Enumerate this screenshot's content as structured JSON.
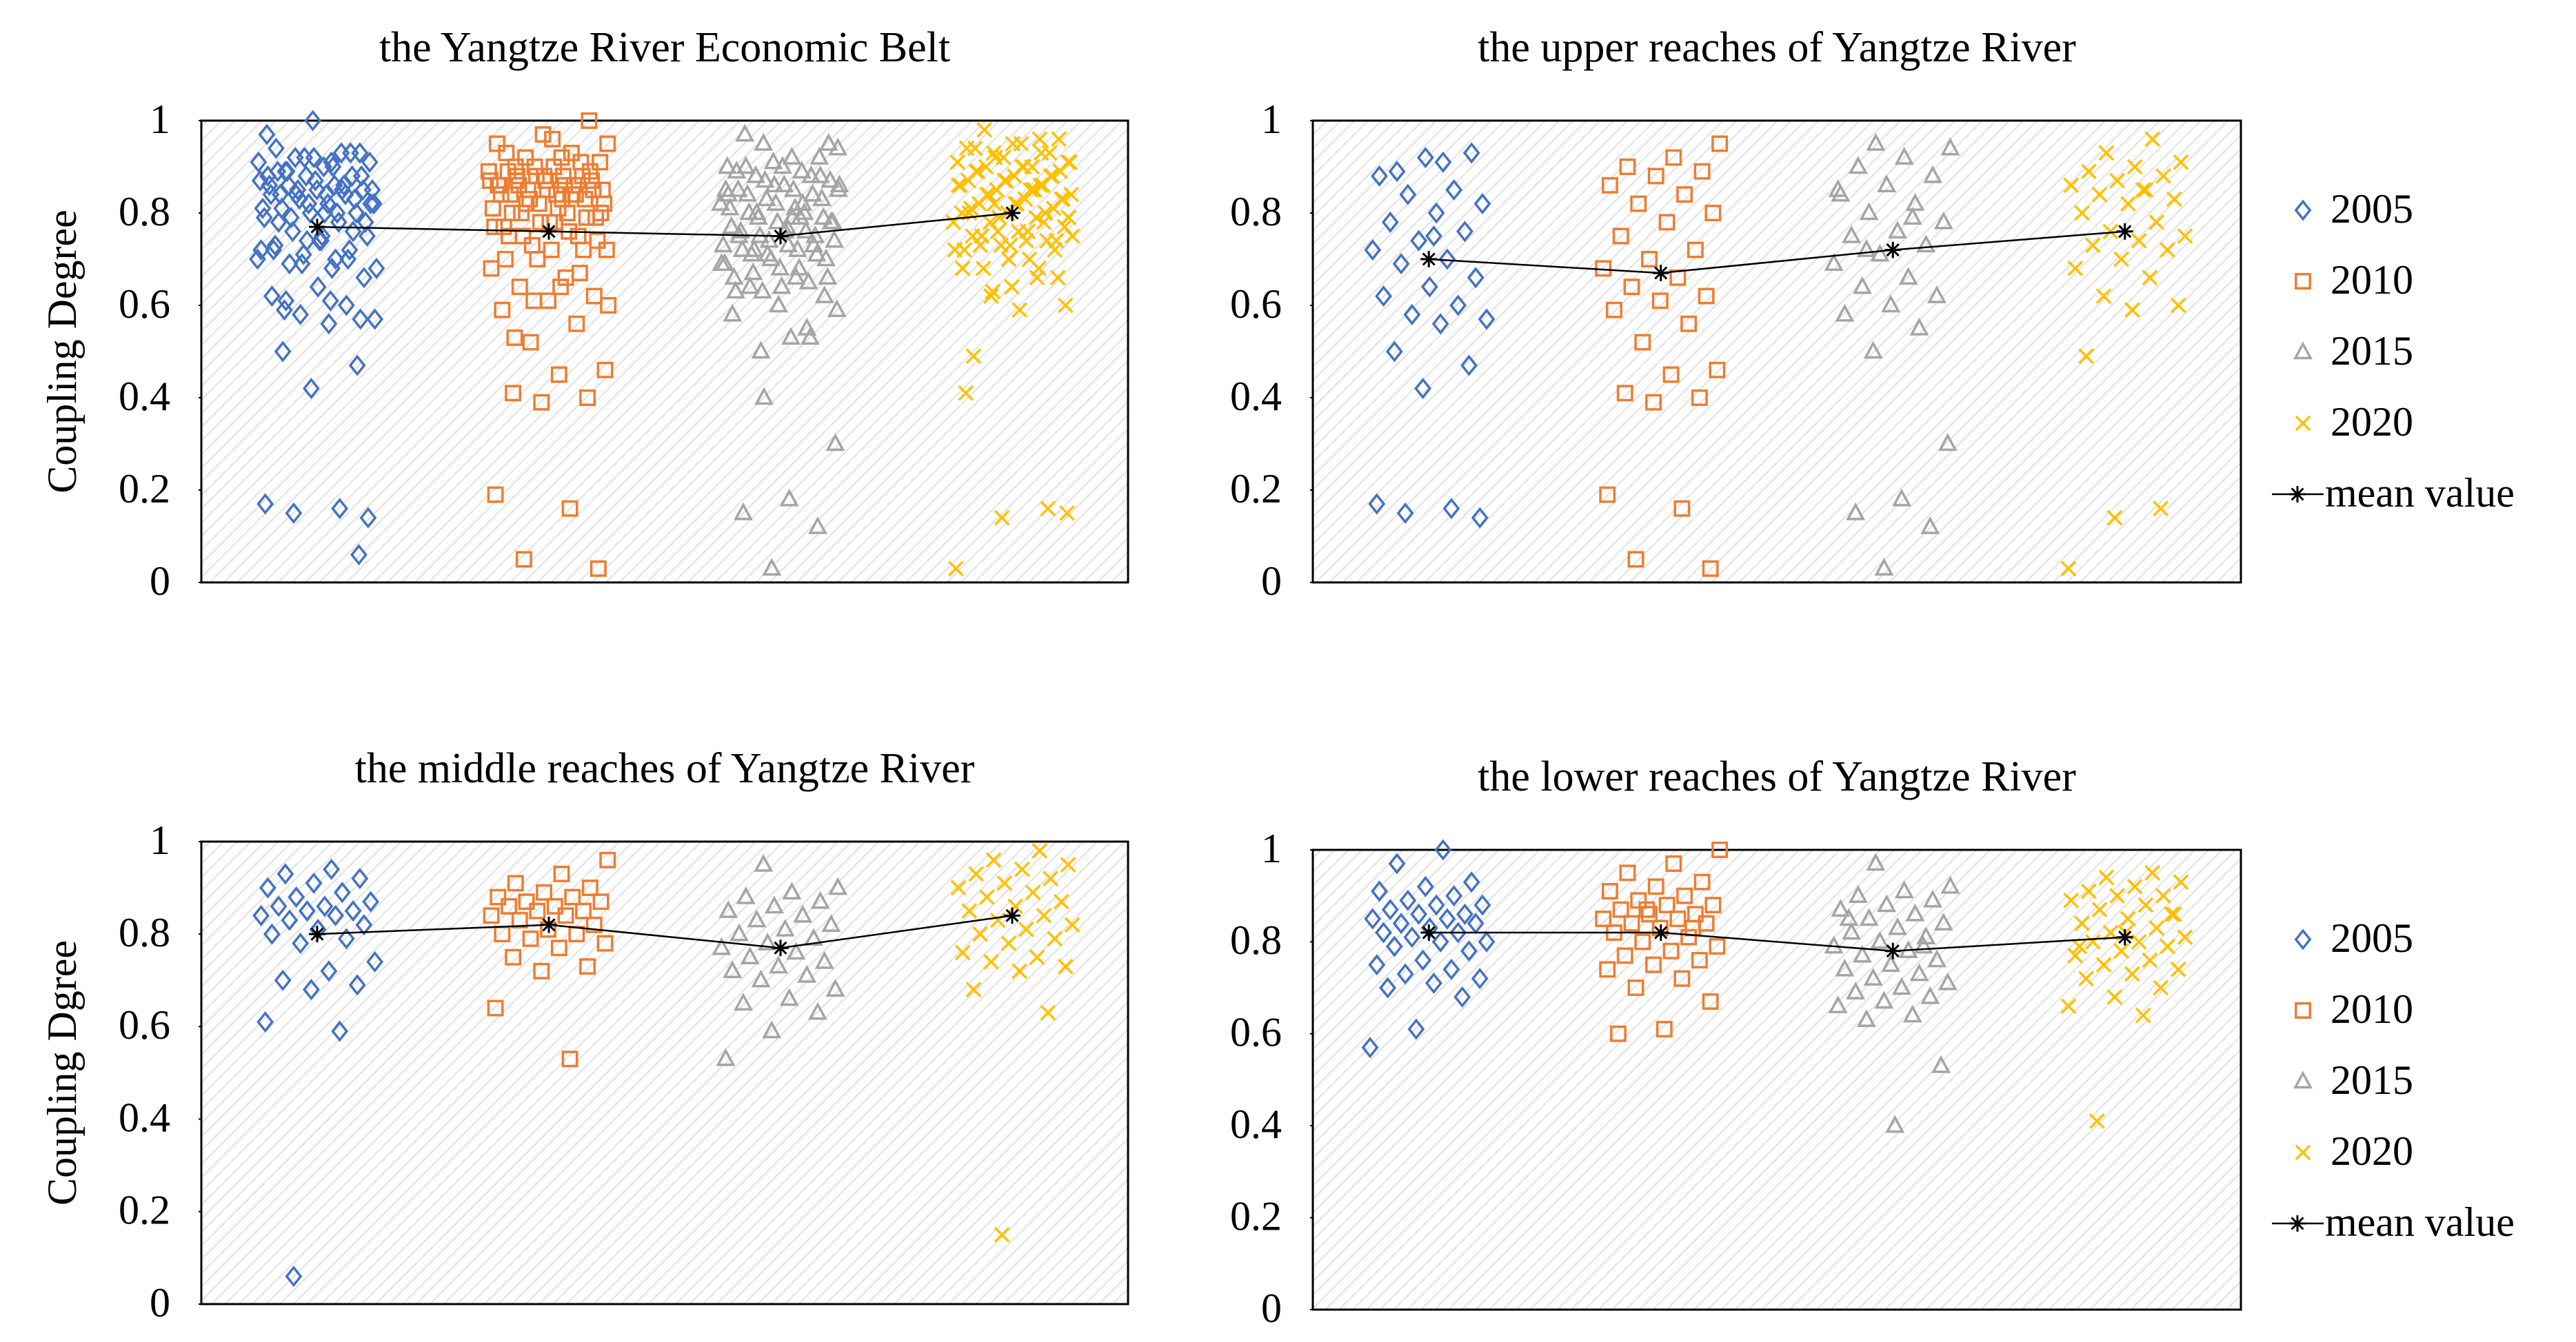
{
  "chart_data": [
    {
      "type": "strip",
      "title": "the Yangtze River Economic Belt",
      "ylabel": "Coupling Degree",
      "ylim": [
        0,
        1
      ],
      "yticks": [
        0,
        0.2,
        0.4,
        0.6,
        0.8,
        1
      ],
      "legend": false,
      "categories": [
        "2005",
        "2010",
        "2015",
        "2020"
      ],
      "series": [
        {
          "name": "2005",
          "color": "#4472c4",
          "marker": "diamond",
          "values": [
            0.91,
            0.89,
            0.93,
            0.92,
            0.88,
            0.85,
            0.84,
            0.82,
            0.8,
            0.78,
            0.76,
            0.74,
            0.72,
            0.7,
            0.69,
            0.66,
            0.64,
            0.62,
            0.6,
            0.58,
            0.57,
            0.56,
            0.5,
            0.47,
            0.42,
            0.17,
            0.16,
            0.15,
            0.14,
            0.75,
            0.94,
            0.93,
            0.92,
            0.91,
            0.9,
            0.89,
            0.88,
            0.87,
            0.86,
            0.86,
            0.85,
            0.85,
            0.84,
            0.84,
            0.83,
            0.82,
            0.81,
            0.8,
            0.79,
            0.78,
            0.74,
            0.72,
            0.7,
            0.69,
            0.68,
            0.61,
            0.59,
            0.06,
            1.0,
            0.97,
            0.93,
            0.92,
            0.91,
            0.9,
            0.89,
            0.88,
            0.88,
            0.87,
            0.86,
            0.86,
            0.85,
            0.85,
            0.84,
            0.84,
            0.83,
            0.82,
            0.82,
            0.81,
            0.8,
            0.8,
            0.79,
            0.78,
            0.76,
            0.75,
            0.74,
            0.73,
            0.72,
            0.71,
            0.7,
            0.68,
            0.61,
            0.57
          ]
        },
        {
          "name": "2010",
          "color": "#ed7d31",
          "marker": "square",
          "values": [
            0.95,
            0.92,
            0.9,
            0.89,
            0.88,
            0.86,
            0.84,
            0.82,
            0.8,
            0.78,
            0.75,
            0.72,
            0.7,
            0.68,
            0.66,
            0.64,
            0.62,
            0.61,
            0.59,
            0.56,
            0.52,
            0.46,
            0.45,
            0.41,
            0.4,
            0.39,
            0.19,
            0.16,
            0.05,
            0.03,
            0.96,
            0.93,
            0.91,
            0.9,
            0.89,
            0.88,
            0.88,
            0.87,
            0.87,
            0.86,
            0.86,
            0.85,
            0.85,
            0.84,
            0.84,
            0.83,
            0.82,
            0.81,
            0.8,
            0.8,
            0.79,
            0.78,
            0.77,
            0.75,
            0.73,
            0.72,
            0.64,
            0.53,
            1.0,
            0.97,
            0.95,
            0.93,
            0.92,
            0.91,
            0.9,
            0.89,
            0.88,
            0.88,
            0.87,
            0.86,
            0.86,
            0.85,
            0.85,
            0.84,
            0.84,
            0.83,
            0.82,
            0.81,
            0.8,
            0.79,
            0.78,
            0.77,
            0.76,
            0.75,
            0.74,
            0.72,
            0.7,
            0.67,
            0.61,
            0.6,
            0.83,
            0.87
          ]
        },
        {
          "name": "2015",
          "color": "#a5a5a5",
          "marker": "triangle",
          "values": [
            0.95,
            0.94,
            0.92,
            0.9,
            0.88,
            0.86,
            0.84,
            0.82,
            0.8,
            0.78,
            0.76,
            0.75,
            0.73,
            0.71,
            0.69,
            0.66,
            0.64,
            0.62,
            0.6,
            0.58,
            0.55,
            0.5,
            0.3,
            0.18,
            0.15,
            0.12,
            0.03,
            0.85,
            0.79,
            0.72,
            0.95,
            0.9,
            0.89,
            0.88,
            0.87,
            0.86,
            0.85,
            0.84,
            0.83,
            0.82,
            0.81,
            0.8,
            0.79,
            0.78,
            0.77,
            0.76,
            0.75,
            0.74,
            0.73,
            0.72,
            0.71,
            0.7,
            0.68,
            0.66,
            0.65,
            0.63,
            0.59,
            0.53,
            0.97,
            0.92,
            0.91,
            0.9,
            0.89,
            0.88,
            0.87,
            0.86,
            0.85,
            0.84,
            0.83,
            0.82,
            0.81,
            0.8,
            0.79,
            0.78,
            0.77,
            0.76,
            0.75,
            0.74,
            0.73,
            0.72,
            0.71,
            0.7,
            0.69,
            0.68,
            0.67,
            0.66,
            0.64,
            0.63,
            0.53,
            0.4,
            0.85,
            0.79
          ]
        },
        {
          "name": "2020",
          "color": "#ffc000",
          "marker": "x",
          "values": [
            0.96,
            0.93,
            0.91,
            0.9,
            0.89,
            0.88,
            0.87,
            0.86,
            0.85,
            0.84,
            0.83,
            0.82,
            0.8,
            0.78,
            0.76,
            0.75,
            0.74,
            0.73,
            0.72,
            0.7,
            0.68,
            0.66,
            0.62,
            0.6,
            0.59,
            0.49,
            0.16,
            0.14,
            0.03,
            0.85,
            0.98,
            0.96,
            0.95,
            0.94,
            0.93,
            0.92,
            0.91,
            0.9,
            0.89,
            0.88,
            0.87,
            0.86,
            0.85,
            0.84,
            0.83,
            0.82,
            0.81,
            0.8,
            0.79,
            0.78,
            0.76,
            0.75,
            0.74,
            0.73,
            0.72,
            0.68,
            0.63,
            0.15,
            0.95,
            0.94,
            0.93,
            0.92,
            0.91,
            0.9,
            0.9,
            0.89,
            0.88,
            0.87,
            0.86,
            0.85,
            0.84,
            0.83,
            0.82,
            0.81,
            0.8,
            0.8,
            0.79,
            0.78,
            0.77,
            0.76,
            0.75,
            0.74,
            0.73,
            0.72,
            0.7,
            0.68,
            0.66,
            0.64,
            0.41,
            0.86,
            0.82,
            0.79
          ]
        }
      ],
      "mean": {
        "name": "mean value",
        "color": "#000000",
        "values": [
          0.77,
          0.76,
          0.75,
          0.8
        ]
      }
    },
    {
      "type": "strip",
      "title": "the upper reaches of Yangtze River",
      "ylim": [
        0,
        1
      ],
      "yticks": [
        0,
        0.2,
        0.4,
        0.6,
        0.8,
        1
      ],
      "legend": true,
      "categories": [
        "2005",
        "2010",
        "2015",
        "2020"
      ],
      "series": [
        {
          "name": "2005",
          "color": "#4472c4",
          "marker": "diamond",
          "values": [
            0.91,
            0.89,
            0.93,
            0.92,
            0.88,
            0.85,
            0.84,
            0.82,
            0.8,
            0.78,
            0.76,
            0.74,
            0.72,
            0.7,
            0.69,
            0.66,
            0.64,
            0.62,
            0.6,
            0.58,
            0.57,
            0.56,
            0.5,
            0.47,
            0.42,
            0.17,
            0.16,
            0.15,
            0.14,
            0.75
          ]
        },
        {
          "name": "2010",
          "color": "#ed7d31",
          "marker": "square",
          "values": [
            0.95,
            0.92,
            0.9,
            0.89,
            0.88,
            0.86,
            0.84,
            0.82,
            0.8,
            0.78,
            0.75,
            0.72,
            0.7,
            0.68,
            0.66,
            0.64,
            0.62,
            0.61,
            0.59,
            0.56,
            0.52,
            0.46,
            0.45,
            0.41,
            0.4,
            0.39,
            0.19,
            0.16,
            0.05,
            0.03
          ]
        },
        {
          "name": "2015",
          "color": "#a5a5a5",
          "marker": "triangle",
          "values": [
            0.95,
            0.94,
            0.92,
            0.9,
            0.88,
            0.86,
            0.84,
            0.82,
            0.8,
            0.78,
            0.76,
            0.75,
            0.73,
            0.71,
            0.69,
            0.66,
            0.64,
            0.62,
            0.6,
            0.58,
            0.55,
            0.5,
            0.3,
            0.18,
            0.15,
            0.12,
            0.03,
            0.85,
            0.79,
            0.72
          ]
        },
        {
          "name": "2020",
          "color": "#ffc000",
          "marker": "x",
          "values": [
            0.96,
            0.93,
            0.91,
            0.9,
            0.89,
            0.88,
            0.87,
            0.86,
            0.85,
            0.84,
            0.83,
            0.82,
            0.8,
            0.78,
            0.76,
            0.75,
            0.74,
            0.73,
            0.72,
            0.7,
            0.68,
            0.66,
            0.62,
            0.6,
            0.59,
            0.49,
            0.16,
            0.14,
            0.03,
            0.85
          ]
        }
      ],
      "mean": {
        "name": "mean value",
        "color": "#000000",
        "values": [
          0.7,
          0.67,
          0.72,
          0.76
        ]
      }
    },
    {
      "type": "strip",
      "title": "the middle reaches of Yangtze River",
      "ylabel": "Coupling Dgree",
      "ylim": [
        0,
        1
      ],
      "yticks": [
        0,
        0.2,
        0.4,
        0.6,
        0.8,
        1
      ],
      "legend": false,
      "categories": [
        "2005",
        "2010",
        "2015",
        "2020"
      ],
      "series": [
        {
          "name": "2005",
          "color": "#4472c4",
          "marker": "diamond",
          "values": [
            0.94,
            0.93,
            0.92,
            0.91,
            0.9,
            0.89,
            0.88,
            0.87,
            0.86,
            0.86,
            0.85,
            0.85,
            0.84,
            0.84,
            0.83,
            0.82,
            0.81,
            0.8,
            0.79,
            0.78,
            0.74,
            0.72,
            0.7,
            0.69,
            0.68,
            0.61,
            0.59,
            0.06
          ]
        },
        {
          "name": "2010",
          "color": "#ed7d31",
          "marker": "square",
          "values": [
            0.96,
            0.93,
            0.91,
            0.9,
            0.89,
            0.88,
            0.88,
            0.87,
            0.87,
            0.86,
            0.86,
            0.85,
            0.85,
            0.84,
            0.84,
            0.83,
            0.82,
            0.81,
            0.8,
            0.8,
            0.79,
            0.78,
            0.77,
            0.75,
            0.73,
            0.72,
            0.64,
            0.53
          ]
        },
        {
          "name": "2015",
          "color": "#a5a5a5",
          "marker": "triangle",
          "values": [
            0.95,
            0.9,
            0.89,
            0.88,
            0.87,
            0.86,
            0.85,
            0.84,
            0.83,
            0.82,
            0.81,
            0.8,
            0.79,
            0.78,
            0.77,
            0.76,
            0.75,
            0.74,
            0.73,
            0.72,
            0.71,
            0.7,
            0.68,
            0.66,
            0.65,
            0.63,
            0.59,
            0.53
          ]
        },
        {
          "name": "2020",
          "color": "#ffc000",
          "marker": "x",
          "values": [
            0.98,
            0.96,
            0.95,
            0.94,
            0.93,
            0.92,
            0.91,
            0.9,
            0.89,
            0.88,
            0.87,
            0.86,
            0.85,
            0.84,
            0.83,
            0.82,
            0.81,
            0.8,
            0.79,
            0.78,
            0.76,
            0.75,
            0.74,
            0.73,
            0.72,
            0.68,
            0.63,
            0.15
          ]
        }
      ],
      "mean": {
        "name": "mean value",
        "color": "#000000",
        "values": [
          0.8,
          0.82,
          0.77,
          0.84
        ]
      }
    },
    {
      "type": "strip",
      "title": "the lower reaches of Yangtze River",
      "ylim": [
        0,
        1
      ],
      "yticks": [
        0,
        0.2,
        0.4,
        0.6,
        0.8,
        1
      ],
      "legend": true,
      "categories": [
        "2005",
        "2010",
        "2015",
        "2020"
      ],
      "series": [
        {
          "name": "2005",
          "color": "#4472c4",
          "marker": "diamond",
          "values": [
            1.0,
            0.97,
            0.93,
            0.92,
            0.91,
            0.9,
            0.89,
            0.88,
            0.88,
            0.87,
            0.86,
            0.86,
            0.85,
            0.85,
            0.84,
            0.84,
            0.83,
            0.82,
            0.82,
            0.81,
            0.8,
            0.8,
            0.79,
            0.78,
            0.76,
            0.75,
            0.74,
            0.73,
            0.72,
            0.71,
            0.7,
            0.68,
            0.61,
            0.57
          ]
        },
        {
          "name": "2010",
          "color": "#ed7d31",
          "marker": "square",
          "values": [
            1.0,
            0.97,
            0.95,
            0.93,
            0.92,
            0.91,
            0.9,
            0.89,
            0.88,
            0.88,
            0.87,
            0.86,
            0.86,
            0.85,
            0.85,
            0.84,
            0.84,
            0.83,
            0.82,
            0.81,
            0.8,
            0.79,
            0.78,
            0.77,
            0.76,
            0.75,
            0.74,
            0.72,
            0.7,
            0.67,
            0.61,
            0.6,
            0.83,
            0.87
          ]
        },
        {
          "name": "2015",
          "color": "#a5a5a5",
          "marker": "triangle",
          "values": [
            0.97,
            0.92,
            0.91,
            0.9,
            0.89,
            0.88,
            0.87,
            0.86,
            0.85,
            0.84,
            0.83,
            0.82,
            0.81,
            0.8,
            0.79,
            0.78,
            0.77,
            0.76,
            0.75,
            0.74,
            0.73,
            0.72,
            0.71,
            0.7,
            0.69,
            0.68,
            0.67,
            0.66,
            0.64,
            0.63,
            0.53,
            0.4,
            0.85,
            0.79
          ]
        },
        {
          "name": "2020",
          "color": "#ffc000",
          "marker": "x",
          "values": [
            0.95,
            0.94,
            0.93,
            0.92,
            0.91,
            0.9,
            0.9,
            0.89,
            0.88,
            0.87,
            0.86,
            0.85,
            0.84,
            0.83,
            0.82,
            0.81,
            0.8,
            0.8,
            0.79,
            0.78,
            0.77,
            0.76,
            0.75,
            0.74,
            0.73,
            0.72,
            0.7,
            0.68,
            0.66,
            0.64,
            0.41,
            0.86,
            0.82,
            0.79
          ]
        }
      ],
      "mean": {
        "name": "mean value",
        "color": "#000000",
        "values": [
          0.82,
          0.82,
          0.78,
          0.81
        ]
      }
    }
  ]
}
